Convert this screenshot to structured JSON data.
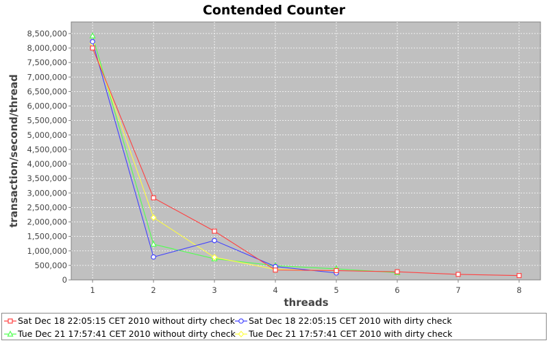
{
  "chart_data": {
    "type": "line",
    "title": "Contended Counter",
    "xlabel": "threads",
    "ylabel": "transaction/second/thread",
    "x_ticks": [
      "1",
      "2",
      "3",
      "4",
      "5",
      "6",
      "7",
      "8"
    ],
    "y_ticks": [
      "0",
      "500,000",
      "1,000,000",
      "1,500,000",
      "2,000,000",
      "2,500,000",
      "3,000,000",
      "3,500,000",
      "4,000,000",
      "4,500,000",
      "5,000,000",
      "5,500,000",
      "6,000,000",
      "6,500,000",
      "7,000,000",
      "7,500,000",
      "8,000,000",
      "8,500,000"
    ],
    "xlim": [
      0.65,
      8.35
    ],
    "ylim": [
      0,
      8900000
    ],
    "grid": true,
    "legend_position": "bottom",
    "plot_background": "#c0c0c0",
    "series": [
      {
        "name": "Sat Dec 18 22:05:15 CET 2010 without dirty check",
        "color": "#ff4040",
        "marker": "square",
        "x": [
          1,
          2,
          3,
          4,
          5,
          6,
          7,
          8
        ],
        "values": [
          8000000,
          2830000,
          1680000,
          340000,
          320000,
          280000,
          190000,
          150000
        ]
      },
      {
        "name": "Sat Dec 18 22:05:15 CET 2010 with dirty check",
        "color": "#4040ff",
        "marker": "circle",
        "x": [
          1,
          2,
          3,
          4,
          5
        ],
        "values": [
          8220000,
          790000,
          1360000,
          460000,
          240000
        ]
      },
      {
        "name": "Tue Dec 21 17:57:41 CET 2010 without dirty check",
        "color": "#50ff50",
        "marker": "triangle",
        "x": [
          1,
          2,
          3,
          4,
          5,
          6
        ],
        "values": [
          8420000,
          1230000,
          730000,
          490000,
          380000,
          250000
        ]
      },
      {
        "name": "Tue Dec 21 17:57:41 CET 2010 with dirty check",
        "color": "#ffff40",
        "marker": "diamond",
        "x": [
          1,
          2,
          3,
          4,
          5
        ],
        "values": [
          8150000,
          2150000,
          780000,
          360000,
          320000
        ]
      }
    ]
  }
}
